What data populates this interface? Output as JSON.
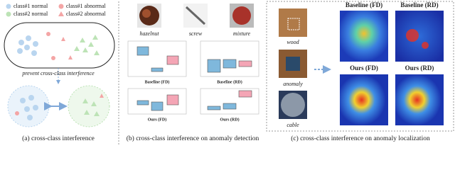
{
  "panel_a": {
    "legend": [
      "class#1 normal",
      "class#1 abnormal",
      "class#2 normal",
      "class#2 abnormal"
    ],
    "annotation": "prevent cross-class interference",
    "caption": "(a) cross-class interference"
  },
  "panel_b": {
    "images": [
      "hazelnut",
      "screw",
      "mixture"
    ],
    "plots": [
      "Baseline (FD)",
      "Baseline (RD)",
      "Ours (FD)",
      "Ours (RD)"
    ],
    "caption": "(b) cross-class interference on anomaly detection"
  },
  "panel_c": {
    "samples": [
      "wood",
      "anomaly",
      "cable"
    ],
    "heatmaps": [
      "Baseline (FD)",
      "Baseline (RD)",
      "Ours (FD)",
      "Ours (RD)"
    ],
    "caption": "(c) cross-class interference on anomaly localization"
  }
}
